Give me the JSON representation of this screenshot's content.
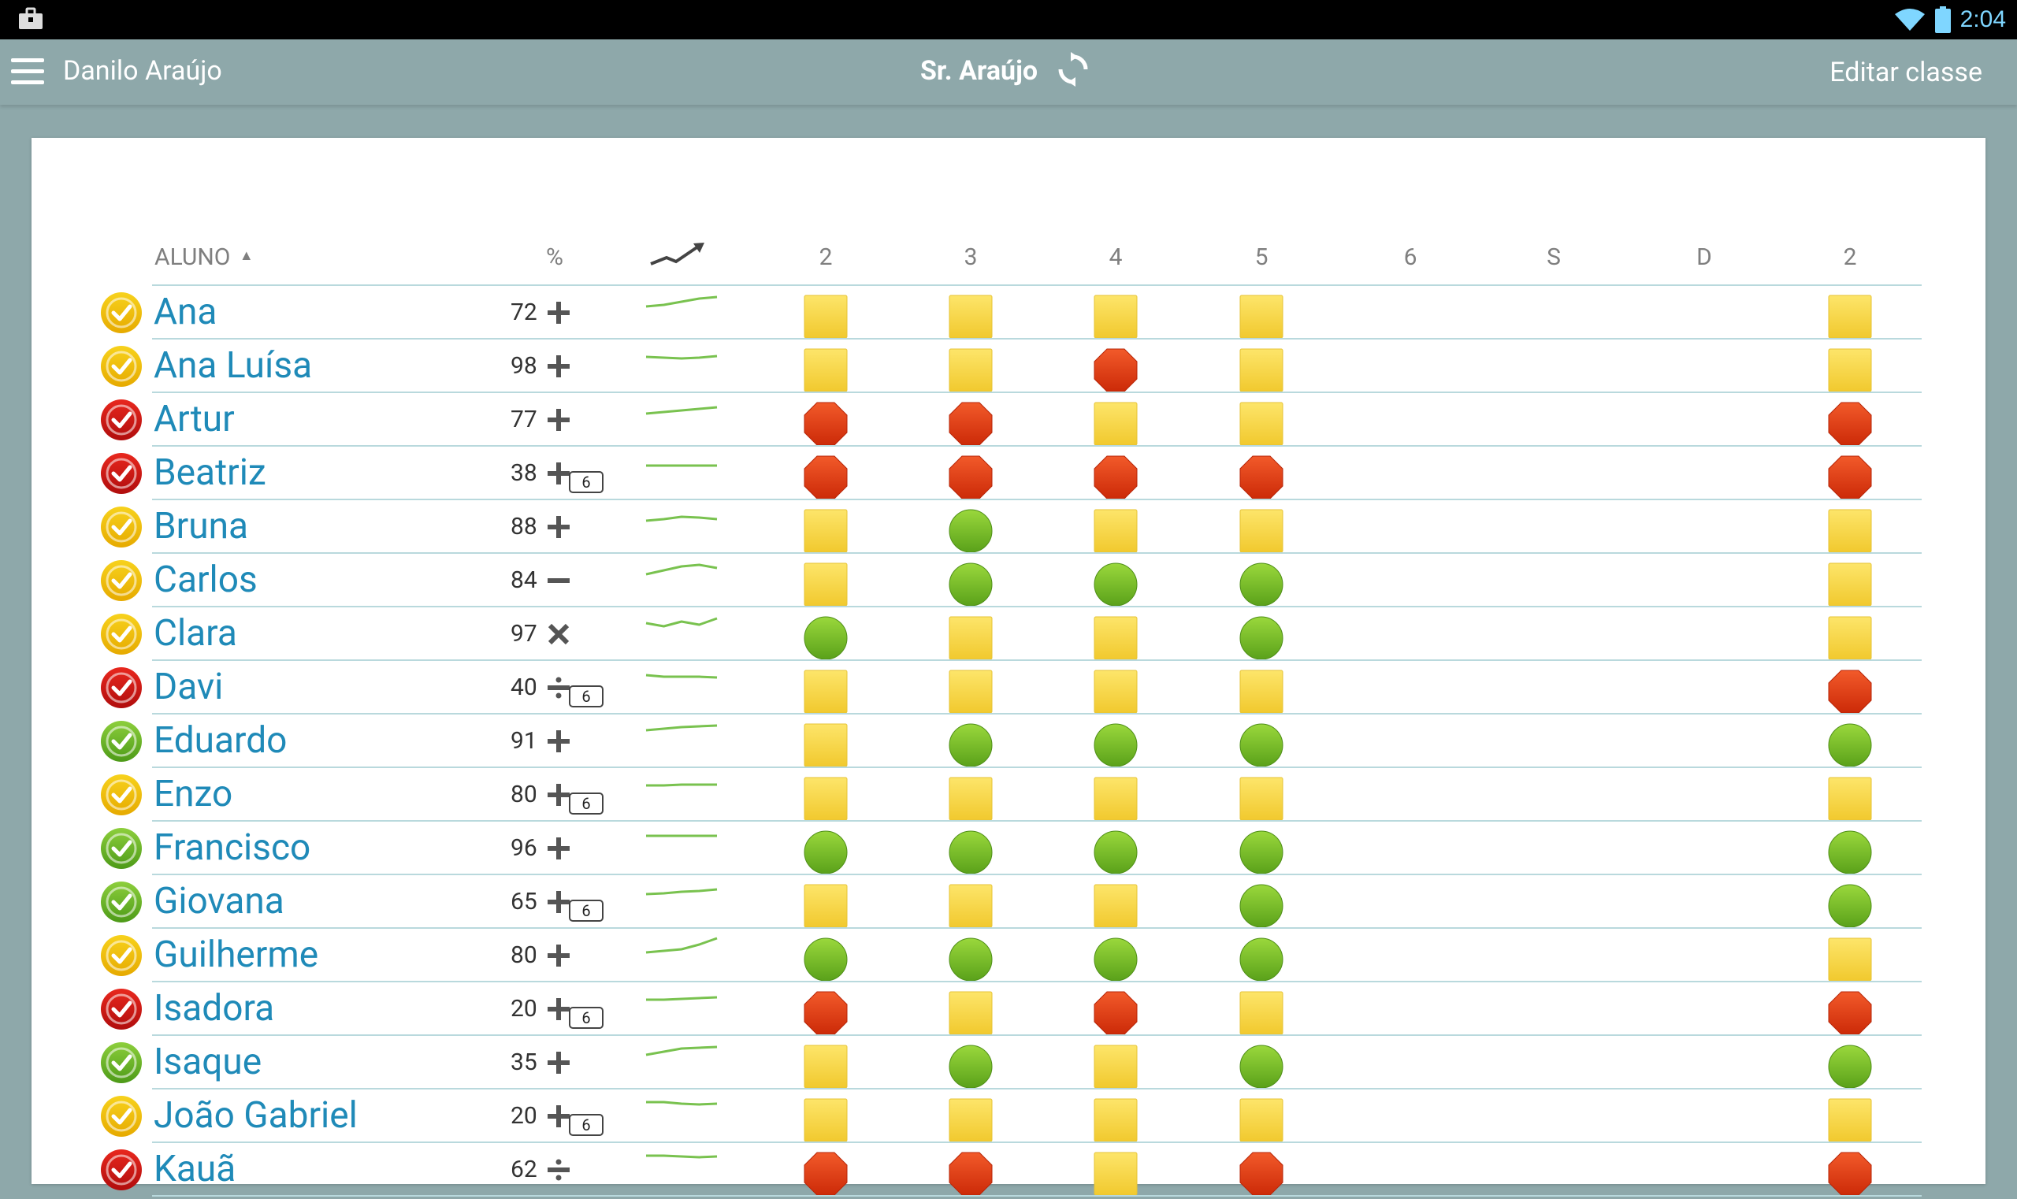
{
  "status_bar": {
    "time": "2:04"
  },
  "app_bar": {
    "user_name": "Danilo Araújo",
    "teacher_title": "Sr. Araújo",
    "edit_button": "Editar classe"
  },
  "table": {
    "headers": {
      "student": "ALUNO",
      "sort_indicator": "▲",
      "percent": "%",
      "days": [
        "2",
        "3",
        "4",
        "5",
        "6",
        "S",
        "D",
        "2"
      ]
    },
    "rows": [
      {
        "name": "Ana",
        "status": "yellow",
        "percent": "72",
        "op": "plus",
        "badge": "",
        "trend": [
          22,
          20,
          16,
          12,
          10
        ],
        "marks": [
          "Y",
          "Y",
          "Y",
          "Y",
          "",
          "",
          "",
          "Y"
        ]
      },
      {
        "name": "Ana Luísa",
        "status": "yellow",
        "percent": "98",
        "op": "plus",
        "badge": "",
        "trend": [
          18,
          19,
          20,
          19,
          17
        ],
        "marks": [
          "Y",
          "Y",
          "R",
          "Y",
          "",
          "",
          "",
          "Y"
        ]
      },
      {
        "name": "Artur",
        "status": "red",
        "percent": "77",
        "op": "plus",
        "badge": "",
        "trend": [
          22,
          20,
          18,
          16,
          14
        ],
        "marks": [
          "R",
          "R",
          "Y",
          "Y",
          "",
          "",
          "",
          "R"
        ]
      },
      {
        "name": "Beatriz",
        "status": "red",
        "percent": "38",
        "op": "plus",
        "badge": "6",
        "trend": [
          20,
          20,
          20,
          20,
          20
        ],
        "marks": [
          "R",
          "R",
          "R",
          "R",
          "",
          "",
          "",
          "R"
        ]
      },
      {
        "name": "Bruna",
        "status": "yellow",
        "percent": "88",
        "op": "plus",
        "badge": "",
        "trend": [
          22,
          20,
          17,
          18,
          20
        ],
        "marks": [
          "Y",
          "G",
          "Y",
          "Y",
          "",
          "",
          "",
          "Y"
        ]
      },
      {
        "name": "Carlos",
        "status": "yellow",
        "percent": "84",
        "op": "minus",
        "badge": "",
        "trend": [
          22,
          17,
          12,
          10,
          14
        ],
        "marks": [
          "Y",
          "G",
          "G",
          "G",
          "",
          "",
          "",
          "Y"
        ]
      },
      {
        "name": "Clara",
        "status": "yellow",
        "percent": "97",
        "op": "times",
        "badge": "",
        "trend": [
          16,
          20,
          14,
          18,
          10
        ],
        "marks": [
          "G",
          "Y",
          "Y",
          "G",
          "",
          "",
          "",
          "Y"
        ]
      },
      {
        "name": "Davi",
        "status": "red",
        "percent": "40",
        "op": "divide",
        "badge": "6",
        "trend": [
          14,
          16,
          16,
          16,
          17
        ],
        "marks": [
          "Y",
          "Y",
          "Y",
          "Y",
          "",
          "",
          "",
          "R"
        ]
      },
      {
        "name": "Eduardo",
        "status": "green",
        "percent": "91",
        "op": "plus",
        "badge": "",
        "trend": [
          16,
          14,
          12,
          11,
          10
        ],
        "marks": [
          "Y",
          "G",
          "G",
          "G",
          "",
          "",
          "",
          "G"
        ]
      },
      {
        "name": "Enzo",
        "status": "yellow",
        "percent": "80",
        "op": "plus",
        "badge": "6",
        "trend": [
          18,
          18,
          17,
          17,
          17
        ],
        "marks": [
          "Y",
          "Y",
          "Y",
          "Y",
          "",
          "",
          "",
          "Y"
        ]
      },
      {
        "name": "Francisco",
        "status": "green",
        "percent": "96",
        "op": "plus",
        "badge": "",
        "trend": [
          14,
          14,
          14,
          14,
          14
        ],
        "marks": [
          "G",
          "G",
          "G",
          "G",
          "",
          "",
          "",
          "G"
        ]
      },
      {
        "name": "Giovana",
        "status": "green",
        "percent": "65",
        "op": "plus",
        "badge": "6",
        "trend": [
          20,
          19,
          17,
          16,
          14
        ],
        "marks": [
          "Y",
          "Y",
          "Y",
          "G",
          "",
          "",
          "",
          "G"
        ]
      },
      {
        "name": "Guilherme",
        "status": "yellow",
        "percent": "80",
        "op": "plus",
        "badge": "",
        "trend": [
          26,
          24,
          22,
          16,
          8
        ],
        "marks": [
          "G",
          "G",
          "G",
          "G",
          "",
          "",
          "",
          "Y"
        ]
      },
      {
        "name": "Isadora",
        "status": "red",
        "percent": "20",
        "op": "plus",
        "badge": "6",
        "trend": [
          18,
          18,
          17,
          16,
          15
        ],
        "marks": [
          "R",
          "Y",
          "R",
          "Y",
          "",
          "",
          "",
          "R"
        ]
      },
      {
        "name": "Isaque",
        "status": "green",
        "percent": "35",
        "op": "plus",
        "badge": "",
        "trend": [
          20,
          16,
          12,
          11,
          10
        ],
        "marks": [
          "Y",
          "G",
          "Y",
          "G",
          "",
          "",
          "",
          "G"
        ]
      },
      {
        "name": "João Gabriel",
        "status": "yellow",
        "percent": "20",
        "op": "plus",
        "badge": "6",
        "trend": [
          12,
          12,
          14,
          15,
          14
        ],
        "marks": [
          "Y",
          "Y",
          "Y",
          "Y",
          "",
          "",
          "",
          "Y"
        ]
      },
      {
        "name": "Kauã",
        "status": "red",
        "percent": "62",
        "op": "divide",
        "badge": "",
        "trend": [
          12,
          12,
          13,
          14,
          13
        ],
        "marks": [
          "R",
          "R",
          "Y",
          "R",
          "",
          "",
          "",
          "R"
        ]
      }
    ]
  }
}
